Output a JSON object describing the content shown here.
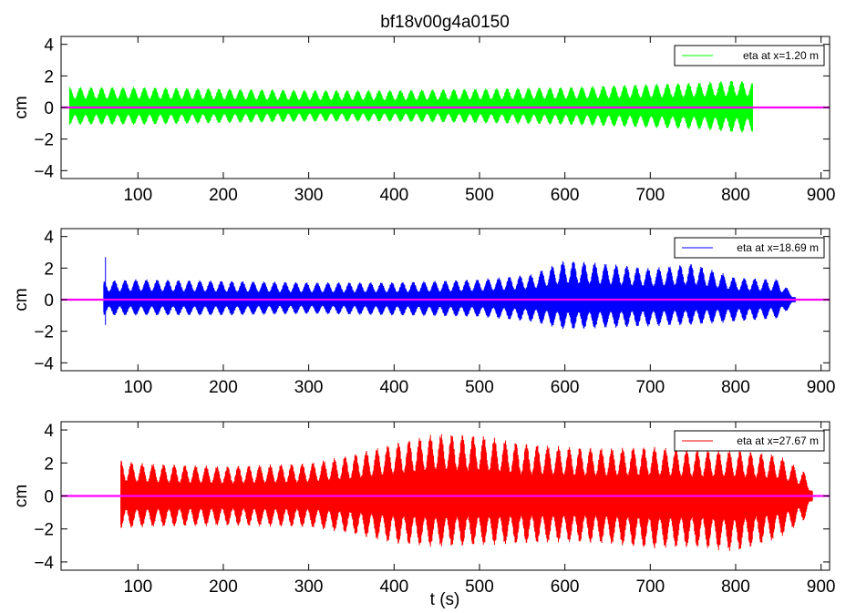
{
  "figure": {
    "title": "bf18v00g4a0150",
    "xlabel": "t (s)"
  },
  "chart_data": [
    {
      "type": "line",
      "title": "bf18v00g4a0150",
      "xlabel": "",
      "ylabel": "cm",
      "xlim": [
        10,
        910
      ],
      "ylim": [
        -4.5,
        4.5
      ],
      "xticks": [
        100,
        200,
        300,
        400,
        500,
        600,
        700,
        800,
        900
      ],
      "yticks": [
        -4,
        -2,
        0,
        2,
        4
      ],
      "grid": false,
      "legend_position": "top-right",
      "series": [
        {
          "name": "eta at x=1.20 m",
          "color": "#00ff00",
          "t_start": 20,
          "t_end": 820,
          "envelope_t": [
            20,
            100,
            200,
            300,
            400,
            500,
            600,
            700,
            760,
            800,
            820
          ],
          "envelope_max": [
            1.3,
            1.3,
            1.2,
            1.1,
            1.1,
            1.2,
            1.3,
            1.5,
            1.6,
            1.75,
            1.6
          ],
          "envelope_min": [
            -1.1,
            -1.1,
            -1.0,
            -0.9,
            -0.9,
            -1.0,
            -1.1,
            -1.3,
            -1.4,
            -1.6,
            -1.6
          ]
        },
        {
          "name": "",
          "color": "#ff00ff",
          "t_start": 10,
          "t_end": 910,
          "value": 0
        }
      ]
    },
    {
      "type": "line",
      "xlabel": "",
      "ylabel": "cm",
      "xlim": [
        10,
        910
      ],
      "ylim": [
        -4.5,
        4.5
      ],
      "xticks": [
        100,
        200,
        300,
        400,
        500,
        600,
        700,
        800,
        900
      ],
      "yticks": [
        -4,
        -2,
        0,
        2,
        4
      ],
      "grid": false,
      "legend_position": "top-right",
      "series": [
        {
          "name": "eta at x=18.69 m",
          "color": "#0000ff",
          "t_start": 60,
          "t_end": 870,
          "spike": {
            "t": 62,
            "max": 2.7,
            "min": -1.6
          },
          "envelope_t": [
            60,
            100,
            200,
            300,
            400,
            500,
            560,
            600,
            650,
            700,
            750,
            800,
            850,
            870
          ],
          "envelope_max": [
            1.2,
            1.3,
            1.2,
            1.1,
            1.1,
            1.3,
            1.6,
            2.5,
            2.3,
            2.0,
            2.3,
            1.4,
            1.3,
            0.2
          ],
          "envelope_min": [
            -1.0,
            -1.0,
            -1.0,
            -0.9,
            -1.0,
            -1.1,
            -1.4,
            -1.9,
            -1.8,
            -1.7,
            -1.6,
            -1.4,
            -1.2,
            -0.2
          ]
        },
        {
          "name": "",
          "color": "#ff00ff",
          "t_start": 10,
          "t_end": 910,
          "value": 0
        }
      ]
    },
    {
      "type": "line",
      "xlabel": "t (s)",
      "ylabel": "cm",
      "xlim": [
        10,
        910
      ],
      "ylim": [
        -4.5,
        4.5
      ],
      "xticks": [
        100,
        200,
        300,
        400,
        500,
        600,
        700,
        800,
        900
      ],
      "yticks": [
        -4,
        -2,
        0,
        2,
        4
      ],
      "grid": false,
      "legend_position": "top-right",
      "series": [
        {
          "name": "eta at x=27.67 m",
          "color": "#ff0000",
          "t_start": 80,
          "t_end": 890,
          "envelope_t": [
            80,
            100,
            200,
            300,
            350,
            400,
            450,
            500,
            550,
            600,
            650,
            700,
            750,
            800,
            850,
            880,
            890
          ],
          "envelope_max": [
            2.2,
            2.0,
            1.8,
            2.0,
            2.5,
            3.2,
            3.8,
            3.7,
            3.2,
            3.0,
            2.9,
            3.0,
            2.8,
            2.8,
            2.5,
            1.5,
            0.4
          ],
          "envelope_min": [
            -2.0,
            -1.9,
            -1.8,
            -1.9,
            -2.3,
            -2.9,
            -3.1,
            -3.0,
            -2.9,
            -2.8,
            -2.9,
            -3.2,
            -3.1,
            -3.4,
            -2.6,
            -1.5,
            -0.4
          ]
        },
        {
          "name": "",
          "color": "#ff00ff",
          "t_start": 10,
          "t_end": 910,
          "value": 0
        }
      ]
    }
  ]
}
